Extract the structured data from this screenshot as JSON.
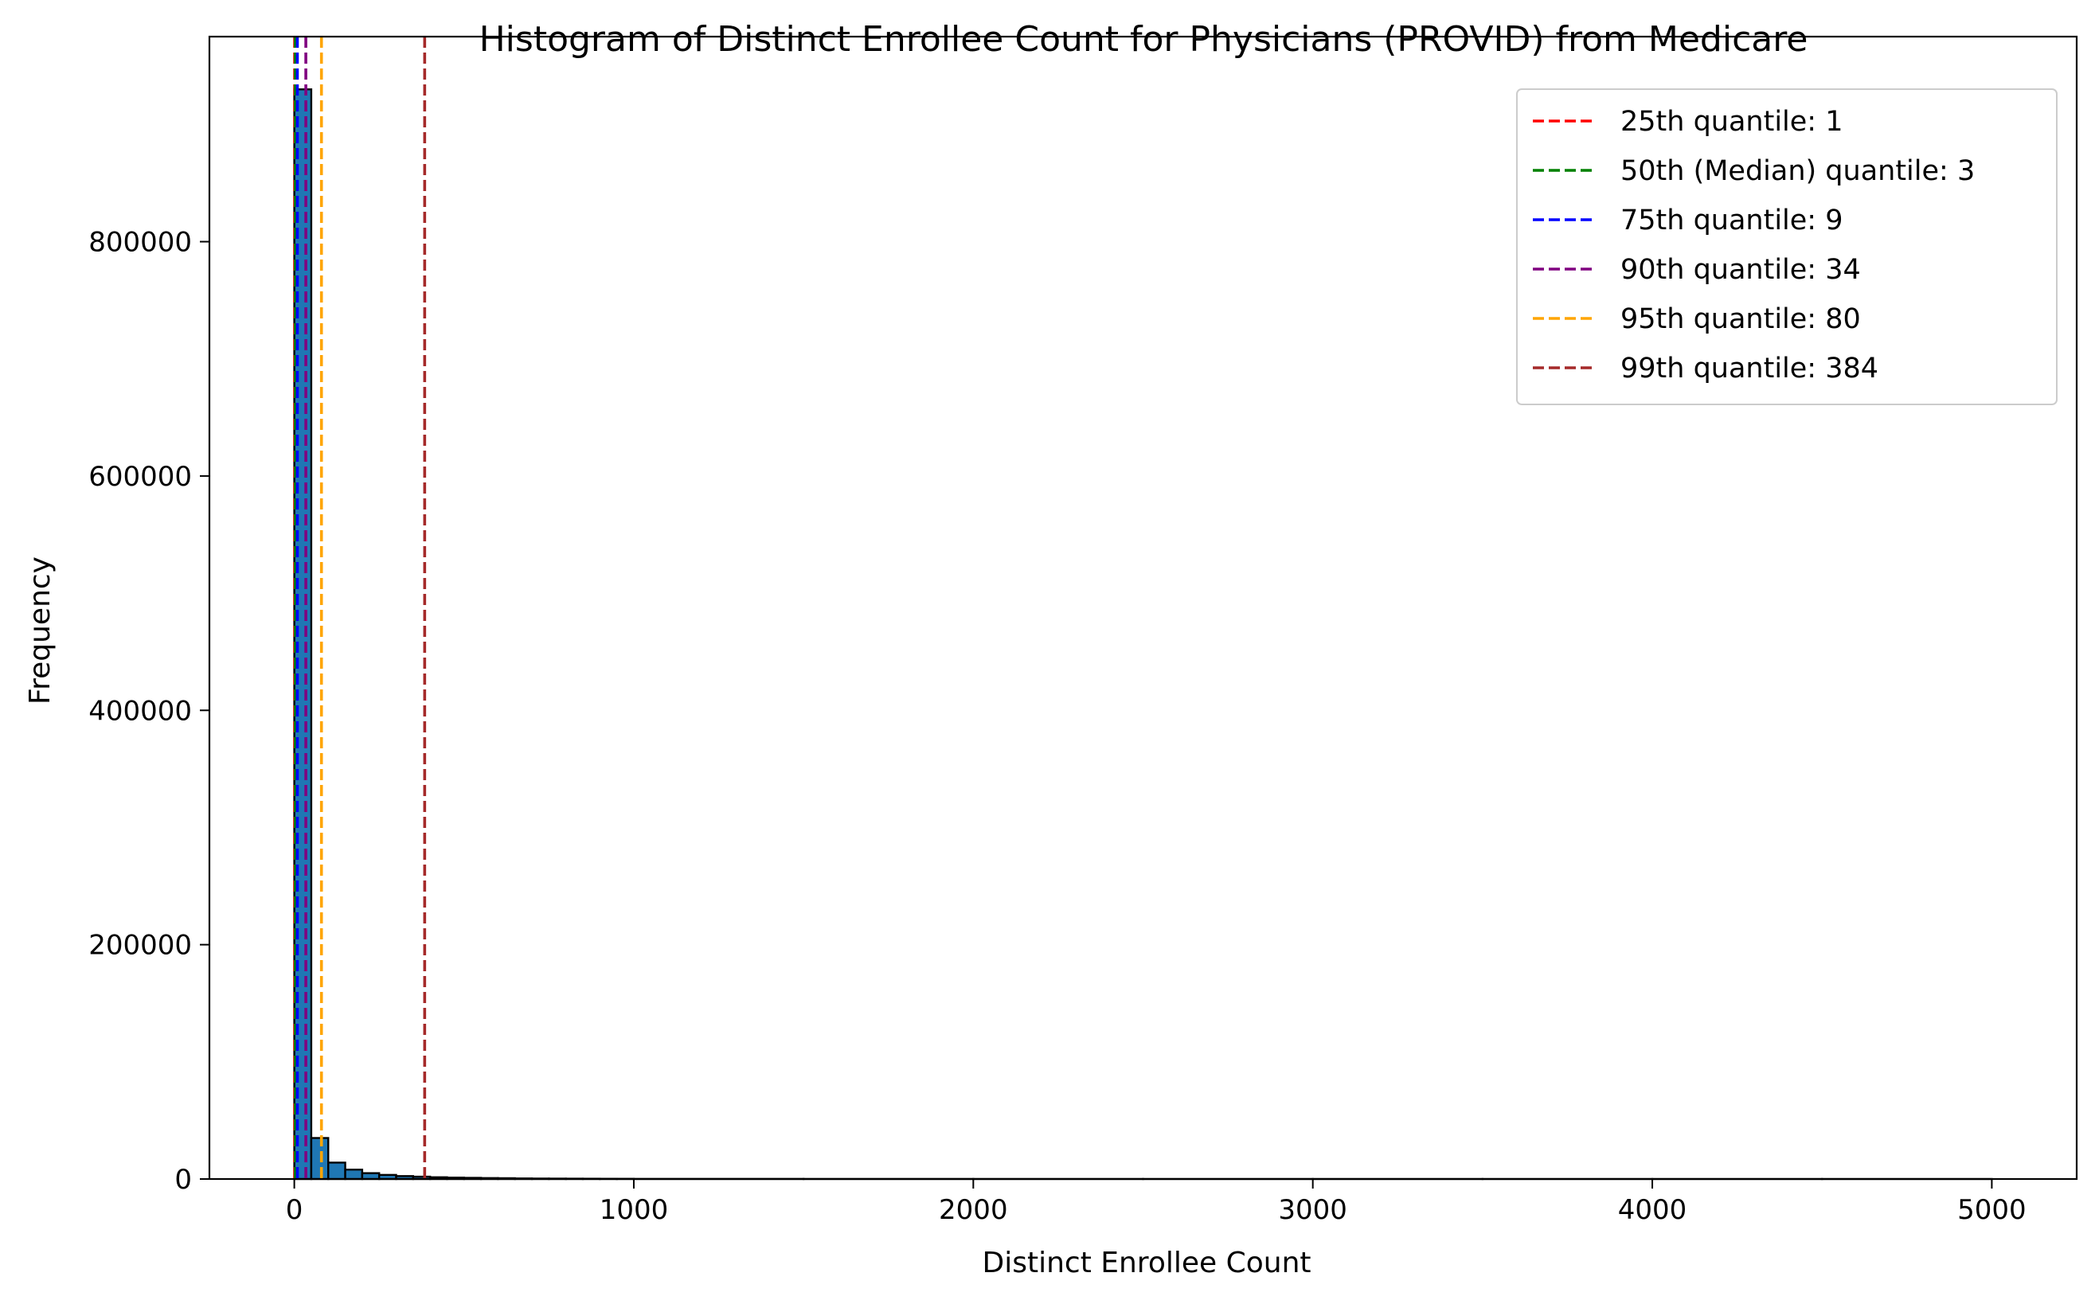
{
  "chart_data": {
    "type": "bar",
    "title": "Histogram of Distinct Enrollee Count for Physicians (PROVID) from Medicare",
    "xlabel": "Distinct Enrollee Count",
    "ylabel": "Frequency",
    "xlim": [
      -250,
      5250
    ],
    "ylim": [
      0,
      975000
    ],
    "x_ticks": [
      0,
      1000,
      2000,
      3000,
      4000,
      5000
    ],
    "y_ticks": [
      0,
      200000,
      400000,
      600000,
      800000
    ],
    "grid": false,
    "legend_position": "top-right",
    "bin_width": 50,
    "bins": [
      {
        "x0": 0,
        "x1": 50,
        "count": 930000
      },
      {
        "x0": 50,
        "x1": 100,
        "count": 35000
      },
      {
        "x0": 100,
        "x1": 150,
        "count": 14000
      },
      {
        "x0": 150,
        "x1": 200,
        "count": 8000
      },
      {
        "x0": 200,
        "x1": 250,
        "count": 5000
      },
      {
        "x0": 250,
        "x1": 300,
        "count": 3500
      },
      {
        "x0": 300,
        "x1": 350,
        "count": 2500
      },
      {
        "x0": 350,
        "x1": 400,
        "count": 2000
      },
      {
        "x0": 400,
        "x1": 450,
        "count": 1500
      },
      {
        "x0": 450,
        "x1": 500,
        "count": 1200
      },
      {
        "x0": 500,
        "x1": 550,
        "count": 1000
      },
      {
        "x0": 550,
        "x1": 600,
        "count": 800
      },
      {
        "x0": 600,
        "x1": 650,
        "count": 700
      },
      {
        "x0": 650,
        "x1": 700,
        "count": 500
      },
      {
        "x0": 700,
        "x1": 750,
        "count": 400
      },
      {
        "x0": 750,
        "x1": 800,
        "count": 350
      },
      {
        "x0": 800,
        "x1": 850,
        "count": 300
      },
      {
        "x0": 850,
        "x1": 900,
        "count": 250
      },
      {
        "x0": 900,
        "x1": 950,
        "count": 200
      },
      {
        "x0": 950,
        "x1": 1000,
        "count": 180
      },
      {
        "x0": 1000,
        "x1": 1500,
        "count": 100
      },
      {
        "x0": 1500,
        "x1": 2000,
        "count": 60
      },
      {
        "x0": 2000,
        "x1": 2500,
        "count": 40
      },
      {
        "x0": 2500,
        "x1": 3000,
        "count": 30
      },
      {
        "x0": 3000,
        "x1": 3500,
        "count": 20
      },
      {
        "x0": 3500,
        "x1": 4000,
        "count": 15
      },
      {
        "x0": 4000,
        "x1": 4500,
        "count": 10
      },
      {
        "x0": 4500,
        "x1": 5000,
        "count": 8
      }
    ],
    "bar_color": "#1f77b4",
    "bar_edge_color": "#000000",
    "quantile_lines": [
      {
        "label": "25th quantile: 1",
        "value": 1,
        "color": "#ff0000"
      },
      {
        "label": "50th (Median) quantile: 3",
        "value": 3,
        "color": "#008000"
      },
      {
        "label": "75th quantile: 9",
        "value": 9,
        "color": "#0000ff"
      },
      {
        "label": "90th quantile: 34",
        "value": 34,
        "color": "#800080"
      },
      {
        "label": "95th quantile: 80",
        "value": 80,
        "color": "#ffa500"
      },
      {
        "label": "99th quantile: 384",
        "value": 384,
        "color": "#a52a2a"
      }
    ]
  }
}
